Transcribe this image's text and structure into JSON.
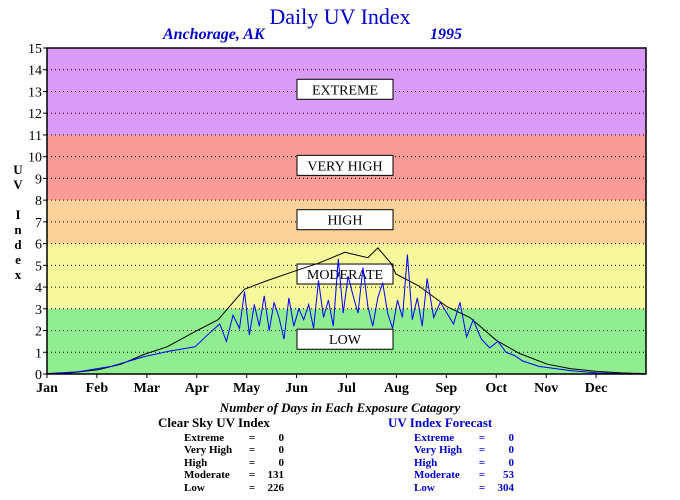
{
  "header": {
    "title": "Daily UV Index",
    "location": "Anchorage, AK",
    "year": "1995"
  },
  "chart_data": {
    "type": "line",
    "ylabel": "UV Index",
    "ylim": [
      0,
      15
    ],
    "yticks": [
      "0",
      "1",
      "2",
      "3",
      "4",
      "5",
      "6",
      "7",
      "8",
      "9",
      "10",
      "11",
      "12",
      "13",
      "14",
      "15"
    ],
    "months": [
      "Jan",
      "Feb",
      "Mar",
      "Apr",
      "May",
      "Jun",
      "Jul",
      "Aug",
      "Sep",
      "Oct",
      "Nov",
      "Dec"
    ],
    "grid": true,
    "bands": [
      {
        "label": "LOW",
        "from": 0,
        "to": 3,
        "color": "#90ee90"
      },
      {
        "label": "MODERATE",
        "from": 3,
        "to": 6,
        "color": "#f7f79c"
      },
      {
        "label": "HIGH",
        "from": 6,
        "to": 8,
        "color": "#fdd19a"
      },
      {
        "label": "VERY HIGH",
        "from": 8,
        "to": 11,
        "color": "#f89a96"
      },
      {
        "label": "EXTREME",
        "from": 11,
        "to": 15,
        "color": "#da9af8"
      }
    ],
    "series": [
      {
        "name": "Clear Sky UV Index",
        "color": "#000000",
        "x": [
          1,
          15,
          32,
          46,
          60,
          74,
          91,
          105,
          121,
          135,
          152,
          166,
          182,
          196,
          202,
          210,
          213,
          227,
          244,
          258,
          274,
          288,
          305,
          319,
          335,
          350,
          365
        ],
        "values": [
          0.02,
          0.05,
          0.2,
          0.45,
          0.9,
          1.25,
          1.95,
          2.5,
          3.9,
          4.3,
          4.75,
          5.1,
          5.6,
          5.35,
          5.8,
          5.1,
          4.6,
          4.05,
          3.1,
          2.6,
          1.55,
          0.95,
          0.45,
          0.25,
          0.12,
          0.05,
          0.02
        ]
      },
      {
        "name": "UV Index Forecast",
        "color": "#0000ff",
        "x": [
          1,
          20,
          40,
          60,
          75,
          91,
          100,
          106,
          110,
          114,
          118,
          121,
          124,
          127,
          130,
          133,
          136,
          139,
          142,
          145,
          148,
          151,
          154,
          157,
          160,
          163,
          166,
          169,
          172,
          175,
          178,
          181,
          184,
          187,
          190,
          193,
          196,
          199,
          202,
          205,
          208,
          211,
          214,
          217,
          220,
          223,
          226,
          229,
          232,
          236,
          240,
          244,
          248,
          252,
          256,
          260,
          265,
          270,
          275,
          280,
          285,
          290,
          300,
          310,
          320,
          335,
          350,
          365
        ],
        "values": [
          0.02,
          0.1,
          0.35,
          0.8,
          1.05,
          1.25,
          1.9,
          2.3,
          1.5,
          2.7,
          2.1,
          3.8,
          1.8,
          3.2,
          2.2,
          3.6,
          2.0,
          3.3,
          2.6,
          1.6,
          3.5,
          2.2,
          3.0,
          2.5,
          3.2,
          2.1,
          4.3,
          2.6,
          3.4,
          2.2,
          5.3,
          2.8,
          4.5,
          3.6,
          2.8,
          4.9,
          3.1,
          2.2,
          3.5,
          4.2,
          2.8,
          2.1,
          3.4,
          2.6,
          5.5,
          2.5,
          3.5,
          2.2,
          4.4,
          2.6,
          3.3,
          2.8,
          2.3,
          3.3,
          1.7,
          2.5,
          1.6,
          1.2,
          1.5,
          1.0,
          0.85,
          0.6,
          0.35,
          0.25,
          0.15,
          0.05,
          0.02,
          0.01
        ]
      }
    ]
  },
  "counts": {
    "title": "Number of Days in Each Exposure Catagory",
    "clear": {
      "heading": "Clear Sky UV Index",
      "rows": [
        {
          "label": "Extreme",
          "value": "0"
        },
        {
          "label": "Very High",
          "value": "0"
        },
        {
          "label": "High",
          "value": "0"
        },
        {
          "label": "Moderate",
          "value": "131"
        },
        {
          "label": "Low",
          "value": "226"
        }
      ]
    },
    "forecast": {
      "heading": "UV Index Forecast",
      "rows": [
        {
          "label": "Extreme",
          "value": "0"
        },
        {
          "label": "Very High",
          "value": "0"
        },
        {
          "label": "High",
          "value": "0"
        },
        {
          "label": "Moderate",
          "value": "53"
        },
        {
          "label": "Low",
          "value": "304"
        }
      ]
    }
  }
}
